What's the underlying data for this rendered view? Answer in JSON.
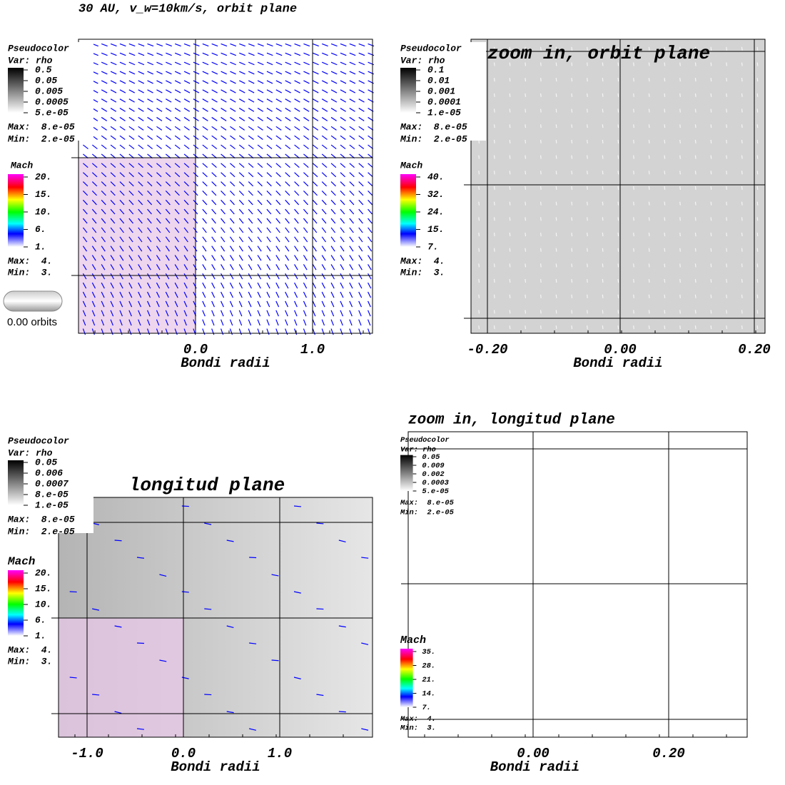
{
  "title": "30 AU, v_w=10km/s, orbit plane",
  "panels": [
    {
      "legend": {
        "rho": {
          "heading": "Pseudocolor",
          "var": "Var: rho",
          "ticks": [
            "0.5",
            "0.05",
            "0.005",
            "0.0005",
            "5.e-05"
          ],
          "max": "Max:  8.e-05",
          "min": "Min:  2.e-05"
        },
        "mach": {
          "heading": "Mach",
          "ticks": [
            "20.",
            "15.",
            "10.",
            "6.",
            "1."
          ],
          "max": "Max:  4.",
          "min": "Min:  3."
        }
      },
      "time": "0.00 orbits",
      "xticks": [
        "0.0",
        "1.0"
      ],
      "xlabel": "Bondi radii"
    },
    {
      "title": "zoom in, orbit plane",
      "legend": {
        "rho": {
          "heading": "Pseudocolor",
          "var": "Var: rho",
          "ticks": [
            "0.1",
            "0.01",
            "0.001",
            "0.0001",
            "1.e-05"
          ],
          "max": "Max:  8.e-05",
          "min": "Min:  2.e-05"
        },
        "mach": {
          "heading": "Mach",
          "ticks": [
            "40.",
            "32.",
            "24.",
            "15.",
            "7."
          ],
          "max": "Max:  4.",
          "min": "Min:  3."
        }
      },
      "xticks": [
        "-0.20",
        "0.00",
        "0.20"
      ],
      "xlabel": "Bondi radii"
    },
    {
      "title": "longitud plane",
      "legend": {
        "rho": {
          "heading": "Pseudocolor",
          "var": "Var: rho",
          "ticks": [
            "0.05",
            "0.006",
            "0.0007",
            "8.e-05",
            "1.e-05"
          ],
          "max": "Max:  8.e-05",
          "min": "Min:  2.e-05"
        },
        "mach": {
          "heading": "Mach",
          "ticks": [
            "20.",
            "15.",
            "10.",
            "6.",
            "1."
          ],
          "max": "Max:  4.",
          "min": "Min:  3."
        }
      },
      "xticks": [
        "-1.0",
        "0.0",
        "1.0"
      ],
      "xlabel": "Bondi radii"
    },
    {
      "title": "zoom in, longitud plane",
      "legend": {
        "rho": {
          "heading": "Pseudocolor",
          "var": "Var: rho",
          "ticks": [
            "0.05",
            "0.009",
            "0.002",
            "0.0003",
            "5.e-05"
          ],
          "max": "Max:  8.e-05",
          "min": "Min:  2.e-05"
        },
        "mach": {
          "heading": "Mach",
          "ticks": [
            "35.",
            "28.",
            "21.",
            "14.",
            "7."
          ],
          "max": "Max:  4.",
          "min": "Min:  3."
        }
      },
      "xticks": [
        "0.00",
        "0.20"
      ],
      "xlabel": "Bondi radii"
    }
  ]
}
